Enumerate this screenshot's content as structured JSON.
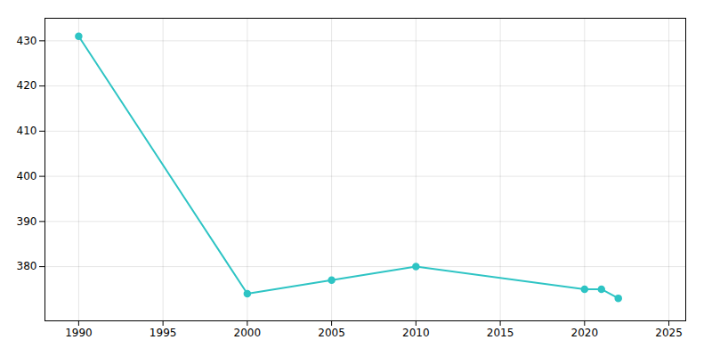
{
  "chart_data": {
    "type": "line",
    "x": [
      1990,
      2000,
      2005,
      2010,
      2020,
      2021,
      2022
    ],
    "values": [
      431,
      374,
      377,
      380,
      375,
      375,
      373
    ],
    "color": "#2EC4C4",
    "marker": "circle",
    "xlim": [
      1988,
      2026
    ],
    "ylim": [
      368,
      435
    ],
    "xticks": [
      1990,
      1995,
      2000,
      2005,
      2010,
      2015,
      2020,
      2025
    ],
    "yticks": [
      380,
      390,
      400,
      410,
      420,
      430
    ],
    "grid": true
  }
}
